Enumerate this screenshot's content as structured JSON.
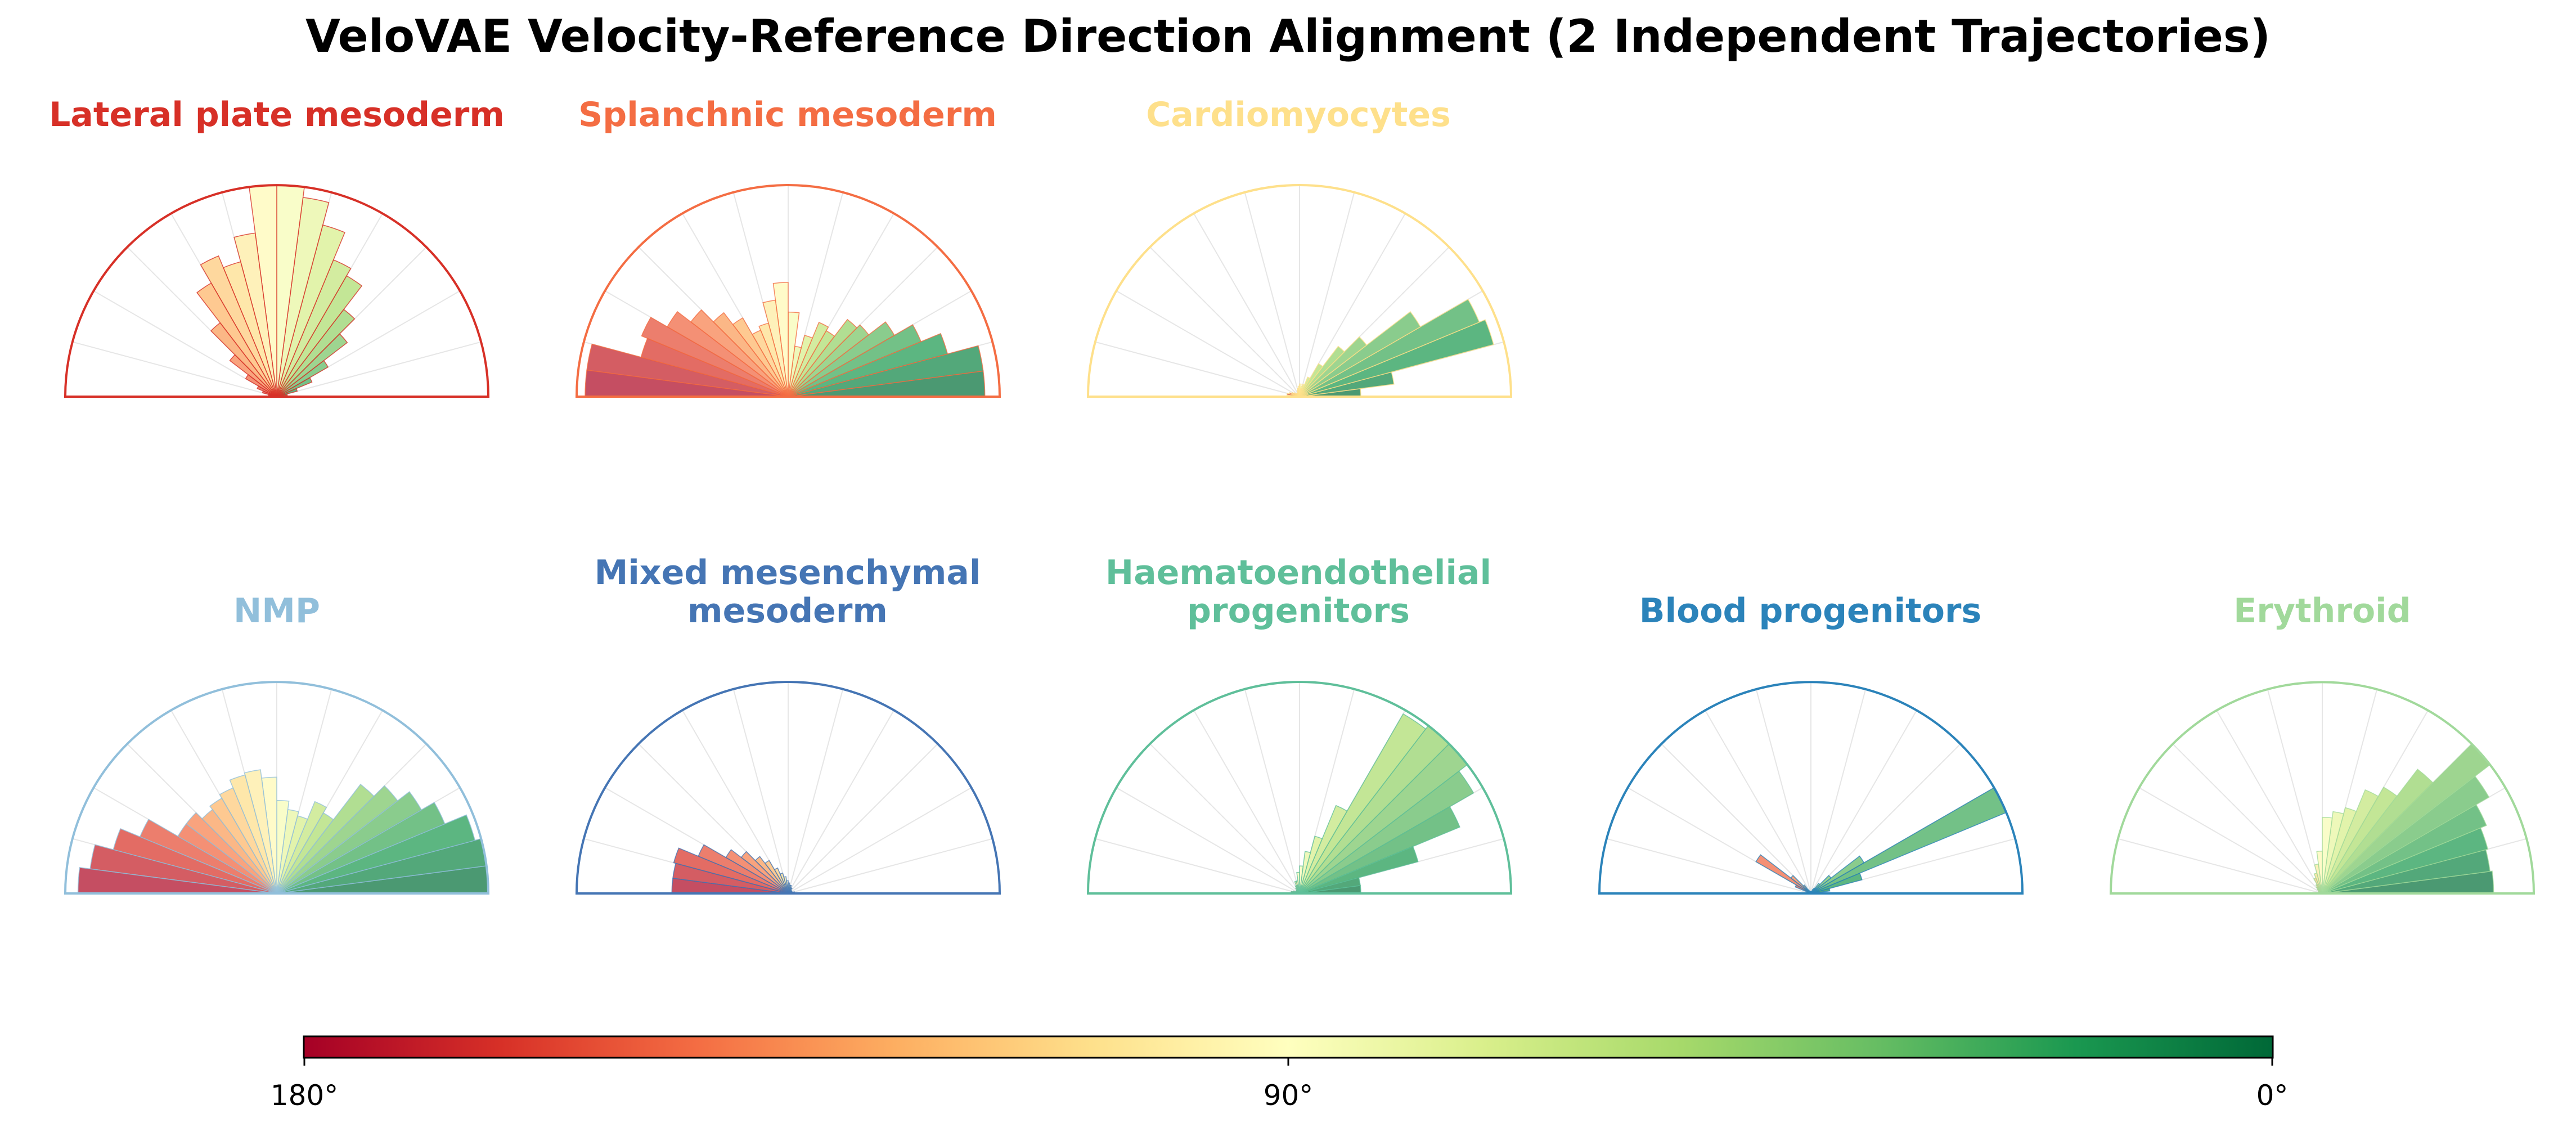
{
  "title": "VeloVAE Velocity-Reference Direction Alignment (2 Independent Trajectories)",
  "chart_data": {
    "type": "polar-bar",
    "angle_unit": "degrees",
    "angle_range": [
      0,
      180
    ],
    "bins": 24,
    "radial_max": 1.0,
    "angle_ticks_deg": [
      0,
      15,
      30,
      45,
      60,
      75,
      90,
      105,
      120,
      135,
      150,
      165,
      180
    ],
    "panels": [
      {
        "name": "Lateral plate mesoderm",
        "color": "#d73027",
        "values": [
          0.02,
          0.05,
          0.1,
          0.18,
          0.28,
          0.42,
          0.52,
          0.66,
          0.7,
          0.84,
          0.95,
          1.0,
          1.0,
          0.78,
          0.66,
          0.72,
          0.62,
          0.44,
          0.28,
          0.17,
          0.1,
          0.07,
          0.04,
          0.02
        ]
      },
      {
        "name": "Splanchnic mesoderm",
        "color": "#f46d43",
        "values": [
          0.93,
          0.93,
          0.78,
          0.68,
          0.58,
          0.48,
          0.46,
          0.36,
          0.38,
          0.3,
          0.24,
          0.4,
          0.54,
          0.46,
          0.36,
          0.34,
          0.43,
          0.5,
          0.58,
          0.66,
          0.75,
          0.72,
          0.96,
          0.96
        ]
      },
      {
        "name": "Cardiomyocytes",
        "color": "#fee08b",
        "values": [
          0.29,
          0.45,
          0.95,
          0.92,
          0.66,
          0.4,
          0.3,
          0.18,
          0.1,
          0.06,
          0.05,
          0.06,
          0.05,
          0.04,
          0.03,
          0.02,
          0.02,
          0.02,
          0.02,
          0.03,
          0.04,
          0.05,
          0.06,
          0.04
        ]
      },
      {
        "name": "NMP",
        "color": "#91bfdb",
        "values": [
          1.0,
          1.0,
          0.97,
          0.86,
          0.79,
          0.72,
          0.65,
          0.44,
          0.47,
          0.38,
          0.4,
          0.44,
          0.55,
          0.59,
          0.58,
          0.54,
          0.52,
          0.5,
          0.54,
          0.54,
          0.7,
          0.8,
          0.89,
          0.94
        ]
      },
      {
        "name": "Mixed mesenchymal\nmesoderm",
        "color": "#4575b4",
        "values": [
          0.03,
          0.03,
          0.02,
          0.02,
          0.02,
          0.02,
          0.02,
          0.03,
          0.03,
          0.04,
          0.04,
          0.05,
          0.06,
          0.08,
          0.1,
          0.13,
          0.18,
          0.22,
          0.28,
          0.34,
          0.46,
          0.56,
          0.55,
          0.55
        ]
      },
      {
        "name": "Haematoendothelial\nprogenitors",
        "color": "#5fbf9a",
        "values": [
          0.29,
          0.29,
          0.58,
          0.82,
          0.95,
          1.0,
          1.0,
          0.98,
          0.45,
          0.28,
          0.2,
          0.13,
          0.1,
          0.06,
          0.06,
          0.04,
          0.03,
          0.02,
          0.02,
          0.02,
          0.02,
          0.03,
          0.04,
          0.02
        ]
      },
      {
        "name": "Blood progenitors",
        "color": "#2b83ba",
        "values": [
          0.02,
          0.09,
          0.25,
          1.0,
          0.29,
          0.12,
          0.06,
          0.03,
          0.02,
          0.01,
          0.01,
          0.01,
          0.01,
          0.01,
          0.01,
          0.01,
          0.02,
          0.05,
          0.12,
          0.3,
          0.08,
          0.02,
          0.01,
          0.01
        ]
      },
      {
        "name": "Erythroid",
        "color": "#a1d99b",
        "values": [
          0.81,
          0.8,
          0.81,
          0.84,
          0.91,
          1.0,
          0.74,
          0.58,
          0.53,
          0.42,
          0.39,
          0.36,
          0.2,
          0.14,
          0.1,
          0.08,
          0.05,
          0.04,
          0.03,
          0.02,
          0.02,
          0.01,
          0.01,
          0.01
        ]
      }
    ],
    "colorbar": {
      "colormap": "RdYlGn",
      "min_color": "#a50026",
      "max_color": "#006837",
      "tick_labels": [
        "180°",
        "90°",
        "0°"
      ],
      "tick_values_deg": [
        180,
        90,
        0
      ]
    }
  }
}
